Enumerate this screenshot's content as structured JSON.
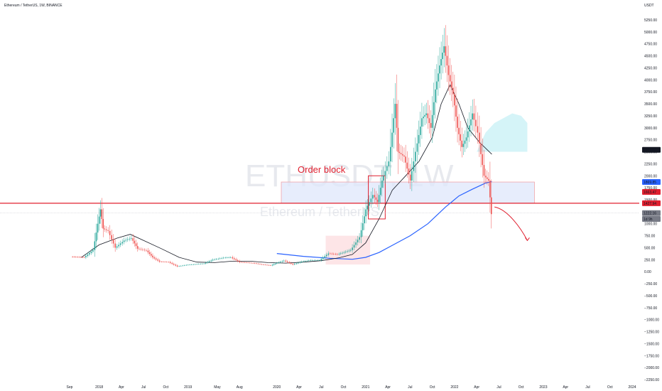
{
  "header": {
    "title": "Ethereum / TetherUS, 1W, BINANCE",
    "currency": "USDT"
  },
  "watermark": {
    "symbol": "ETHUSDT, 1W",
    "name": "Ethereum / TetherUS"
  },
  "annotations": {
    "order_block_label": "Order block"
  },
  "colors": {
    "up": "#26a69a",
    "down": "#ef5350",
    "red_line": "#e0202f",
    "blue_ma": "#2962ff",
    "black_ma": "#131722",
    "zone_fill": "#dfe7fb",
    "zone_border": "#f0a4aa",
    "cloud": "#b2ebf2"
  },
  "chart_data": {
    "type": "line",
    "ylim": [
      -2250,
      5500
    ],
    "y_ticks": [
      "5250.00",
      "5000.00",
      "4750.00",
      "4500.00",
      "4250.00",
      "4000.00",
      "3750.00",
      "3500.00",
      "3250.00",
      "3000.00",
      "2750.00",
      "2500.00",
      "2250.00",
      "2000.00",
      "1750.00",
      "1500.00",
      "1250.00",
      "1000.00",
      "750.00",
      "500.00",
      "250.00",
      "0.00",
      "−250.00",
      "−500.00",
      "−750.00",
      "−1000.00",
      "−1250.00",
      "−1500.00",
      "−1750.00",
      "−2000.00",
      "−2250.00"
    ],
    "x_labels": [
      "Sep",
      "2018",
      "Apr",
      "Jul",
      "Oct",
      "2019",
      "May",
      "Aug",
      "2020",
      "Apr",
      "Jul",
      "Oct",
      "2021",
      "Apr",
      "Jul",
      "Oct",
      "2022",
      "Apr",
      "Jul",
      "Oct",
      "2023",
      "Apr",
      "Jul",
      "Oct",
      "2024"
    ],
    "price_labels": [
      {
        "value": 2541.5,
        "text": "2541.50",
        "style": "dark"
      },
      {
        "value": 1869.85,
        "text": "1869.85",
        "style": "blue"
      },
      {
        "value": 1663.47,
        "text": "1663.47",
        "style": "red"
      },
      {
        "value": 1427.94,
        "text": "1427.94",
        "style": "red"
      },
      {
        "value": 1222.16,
        "text": "1222.16",
        "style": "gray"
      },
      {
        "value": 1100,
        "text": "1d 9h",
        "style": "gray"
      }
    ],
    "horizontal_line": 1427.94,
    "order_block_zone": [
      1427.94,
      1869.85
    ],
    "price": [
      [
        2017.7,
        310
      ],
      [
        2017.85,
        300
      ],
      [
        2017.95,
        450
      ],
      [
        2018.0,
        1000
      ],
      [
        2018.03,
        1300
      ],
      [
        2018.06,
        900
      ],
      [
        2018.12,
        850
      ],
      [
        2018.2,
        500
      ],
      [
        2018.3,
        650
      ],
      [
        2018.38,
        700
      ],
      [
        2018.45,
        480
      ],
      [
        2018.55,
        440
      ],
      [
        2018.62,
        300
      ],
      [
        2018.7,
        210
      ],
      [
        2018.8,
        200
      ],
      [
        2018.9,
        110
      ],
      [
        2019.0,
        140
      ],
      [
        2019.2,
        170
      ],
      [
        2019.3,
        250
      ],
      [
        2019.42,
        290
      ],
      [
        2019.5,
        300
      ],
      [
        2019.6,
        200
      ],
      [
        2019.75,
        180
      ],
      [
        2019.85,
        150
      ],
      [
        2019.95,
        130
      ],
      [
        2020.0,
        170
      ],
      [
        2020.1,
        230
      ],
      [
        2020.2,
        150
      ],
      [
        2020.3,
        210
      ],
      [
        2020.4,
        240
      ],
      [
        2020.5,
        240
      ],
      [
        2020.6,
        380
      ],
      [
        2020.7,
        360
      ],
      [
        2020.85,
        450
      ],
      [
        2020.95,
        720
      ],
      [
        2021.02,
        1300
      ],
      [
        2021.1,
        1600
      ],
      [
        2021.15,
        1450
      ],
      [
        2021.2,
        1900
      ],
      [
        2021.28,
        2300
      ],
      [
        2021.35,
        3500
      ],
      [
        2021.38,
        2500
      ],
      [
        2021.45,
        2400
      ],
      [
        2021.52,
        1900
      ],
      [
        2021.58,
        2500
      ],
      [
        2021.65,
        3200
      ],
      [
        2021.7,
        3300
      ],
      [
        2021.75,
        3000
      ],
      [
        2021.8,
        3800
      ],
      [
        2021.85,
        4300
      ],
      [
        2021.9,
        4700
      ],
      [
        2021.95,
        4100
      ],
      [
        2022.0,
        3700
      ],
      [
        2022.05,
        3000
      ],
      [
        2022.1,
        2600
      ],
      [
        2022.15,
        2800
      ],
      [
        2022.22,
        3300
      ],
      [
        2022.28,
        2900
      ],
      [
        2022.35,
        2000
      ],
      [
        2022.4,
        1900
      ],
      [
        2022.43,
        1200
      ]
    ],
    "black_ma": [
      [
        2017.8,
        300
      ],
      [
        2018.0,
        560
      ],
      [
        2018.2,
        700
      ],
      [
        2018.35,
        780
      ],
      [
        2018.5,
        650
      ],
      [
        2018.7,
        480
      ],
      [
        2018.9,
        300
      ],
      [
        2019.1,
        200
      ],
      [
        2019.3,
        190
      ],
      [
        2019.5,
        220
      ],
      [
        2019.7,
        220
      ],
      [
        2019.9,
        190
      ],
      [
        2020.1,
        180
      ],
      [
        2020.3,
        200
      ],
      [
        2020.5,
        230
      ],
      [
        2020.7,
        290
      ],
      [
        2020.85,
        360
      ],
      [
        2021.0,
        600
      ],
      [
        2021.15,
        1100
      ],
      [
        2021.3,
        1700
      ],
      [
        2021.45,
        2000
      ],
      [
        2021.6,
        2300
      ],
      [
        2021.75,
        2800
      ],
      [
        2021.85,
        3500
      ],
      [
        2021.95,
        3900
      ],
      [
        2022.05,
        3500
      ],
      [
        2022.15,
        3000
      ],
      [
        2022.28,
        2700
      ],
      [
        2022.42,
        2450
      ]
    ],
    "blue_ma": [
      [
        2020.0,
        380
      ],
      [
        2020.3,
        320
      ],
      [
        2020.6,
        280
      ],
      [
        2020.85,
        260
      ],
      [
        2021.0,
        300
      ],
      [
        2021.15,
        400
      ],
      [
        2021.3,
        550
      ],
      [
        2021.5,
        750
      ],
      [
        2021.7,
        1000
      ],
      [
        2021.9,
        1350
      ],
      [
        2022.05,
        1580
      ],
      [
        2022.2,
        1720
      ],
      [
        2022.35,
        1850
      ],
      [
        2022.42,
        1880
      ]
    ],
    "projection": [
      [
        2022.45,
        1350
      ],
      [
        2022.6,
        1300
      ],
      [
        2022.75,
        900
      ],
      [
        2022.82,
        650
      ]
    ],
    "cloud": [
      [
        2022.25,
        2500
      ],
      [
        2022.35,
        2900
      ],
      [
        2022.45,
        3100
      ],
      [
        2022.55,
        3200
      ],
      [
        2022.65,
        3300
      ],
      [
        2022.75,
        3250
      ],
      [
        2022.82,
        3100
      ],
      [
        2022.82,
        2500
      ]
    ]
  }
}
